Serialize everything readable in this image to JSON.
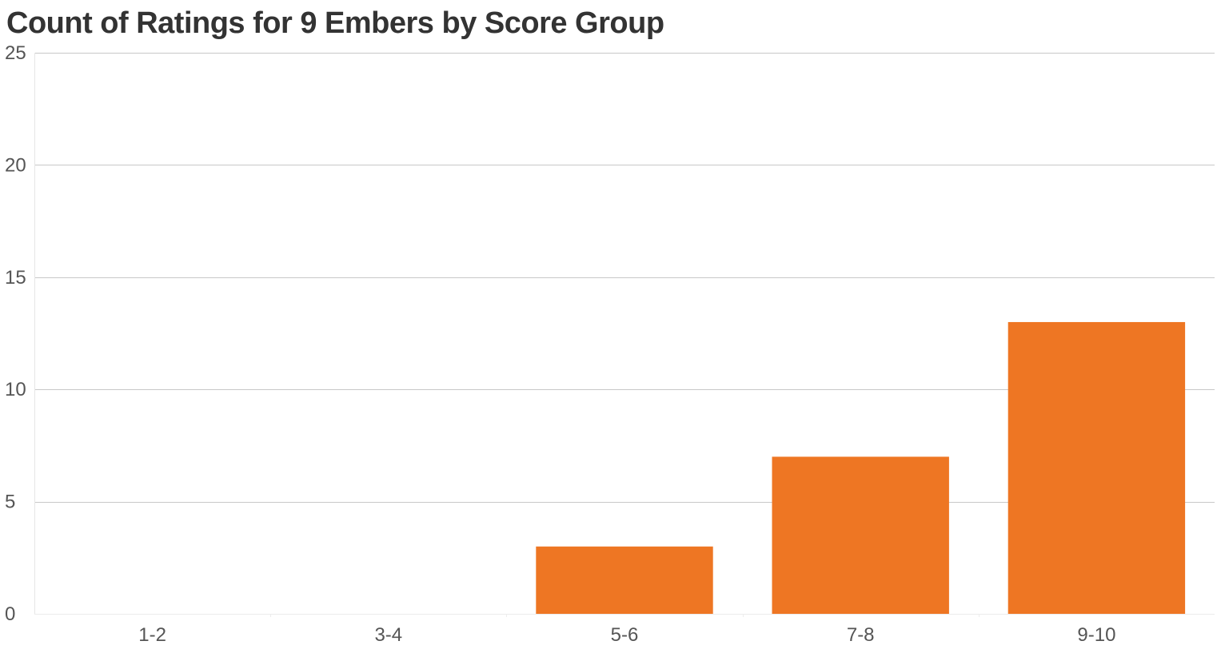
{
  "chart_data": {
    "type": "bar",
    "title": "Count of Ratings for 9 Embers by Score Group",
    "xlabel": "",
    "ylabel": "",
    "categories": [
      "1-2",
      "3-4",
      "5-6",
      "7-8",
      "9-10"
    ],
    "values": [
      0,
      0,
      3,
      7,
      13
    ],
    "ylim": [
      0,
      25
    ],
    "yticks": [
      0,
      5,
      10,
      15,
      20,
      25
    ],
    "ytick_labels": [
      "0",
      "5",
      "10",
      "15",
      "20",
      "25"
    ],
    "grid": true,
    "colors": {
      "bar": "#EE7623",
      "grid": "#C8C8C8",
      "axis_text": "#555555",
      "title": "#333333"
    }
  }
}
